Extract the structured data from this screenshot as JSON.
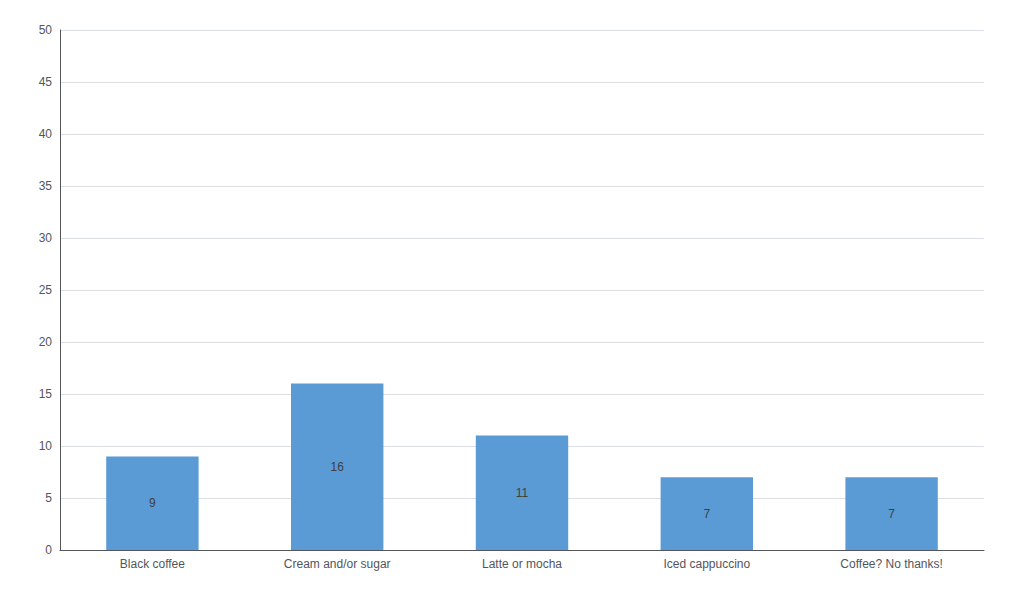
{
  "chart_data": {
    "type": "bar",
    "categories": [
      "Black coffee",
      "Cream and/or sugar",
      "Latte or mocha",
      "Iced cappuccino",
      "Coffee? No thanks!"
    ],
    "values": [
      9,
      16,
      11,
      7,
      7
    ],
    "color": "#5B9BD5",
    "ylim": [
      0,
      50
    ],
    "yticks": [
      0,
      5,
      10,
      15,
      20,
      25,
      30,
      35,
      40,
      45,
      50
    ],
    "grid": true,
    "data_labels": true
  }
}
